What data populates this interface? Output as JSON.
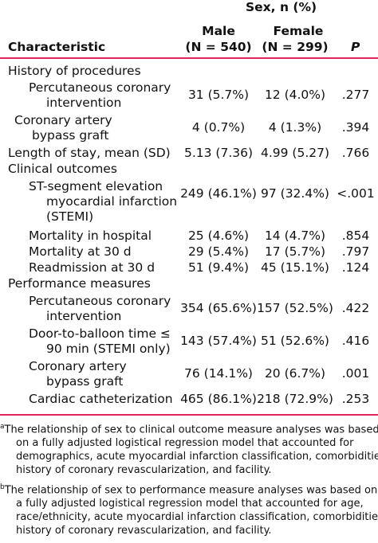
{
  "header": {
    "group": "Sex, n (%)",
    "characteristic": "Characteristic",
    "male": "Male",
    "male_n": "(N = 540)",
    "female": "Female",
    "female_n": "(N = 299)",
    "p": "P"
  },
  "rows": [
    {
      "lines": [
        "History of procedures"
      ],
      "male": "",
      "female": "",
      "p": ""
    },
    {
      "lines": [
        "Percutaneous coronary",
        "intervention"
      ],
      "male": "31 (5.7%)",
      "female": "12 (4.0%)",
      "p": ".277"
    },
    {
      "lines": [
        "Coronary artery",
        "bypass graft"
      ],
      "male": "4 (0.7%)",
      "female": "4 (1.3%)",
      "p": ".394"
    },
    {
      "lines": [
        "Length of stay, mean (SD)"
      ],
      "male": "5.13 (7.36)",
      "female": "4.99 (5.27)",
      "p": ".766"
    },
    {
      "lines": [
        "Clinical outcomes"
      ],
      "sup": "a",
      "male": "",
      "female": "",
      "p": ""
    },
    {
      "lines": [
        "ST-segment elevation",
        "myocardial infarction",
        "(STEMI)"
      ],
      "male": "249 (46.1%)",
      "female": "97 (32.4%)",
      "p": "<.001"
    },
    {
      "lines": [
        "Mortality in hospital"
      ],
      "male": "25 (4.6%)",
      "female": "14 (4.7%)",
      "p": ".854"
    },
    {
      "lines": [
        "Mortality at 30 d"
      ],
      "male": "29 (5.4%)",
      "female": "17 (5.7%)",
      "p": ".797"
    },
    {
      "lines": [
        "Readmission at 30 d"
      ],
      "male": "51 (9.4%)",
      "female": "45 (15.1%)",
      "p": ".124"
    },
    {
      "lines": [
        "Performance measures"
      ],
      "sup": "b",
      "male": "",
      "female": "",
      "p": ""
    },
    {
      "lines": [
        "Percutaneous coronary",
        "intervention"
      ],
      "male": "354 (65.6%)",
      "female": "157 (52.5%)",
      "p": ".422"
    },
    {
      "lines": [
        "Door-to-balloon time ≤",
        "90 min (STEMI only)"
      ],
      "male": "143 (57.4%)",
      "female": "51 (52.6%)",
      "p": ".416"
    },
    {
      "lines": [
        "Coronary artery",
        "bypass graft"
      ],
      "male": "76 (14.1%)",
      "female": "20 (6.7%)",
      "p": ".001"
    },
    {
      "lines": [
        "Cardiac catheterization"
      ],
      "male": "465 (86.1%)",
      "female": "218 (72.9%)",
      "p": ".253"
    }
  ],
  "footnotes": [
    {
      "mark": "a",
      "lines": [
        "The relationship of sex to clinical outcome measure analyses was based",
        "on a fully adjusted logistical regression model that accounted for",
        "demographics, acute myocardial infarction classification, comorbidities,",
        "history of coronary revascularization, and facility."
      ]
    },
    {
      "mark": "b",
      "lines": [
        "The relationship of sex to performance measure analyses was based on",
        "a fully adjusted logistical regression model that accounted for age,",
        "race/ethnicity, acute myocardial infarction classification, comorbidities,",
        "history of coronary revascularization, and facility."
      ]
    }
  ]
}
